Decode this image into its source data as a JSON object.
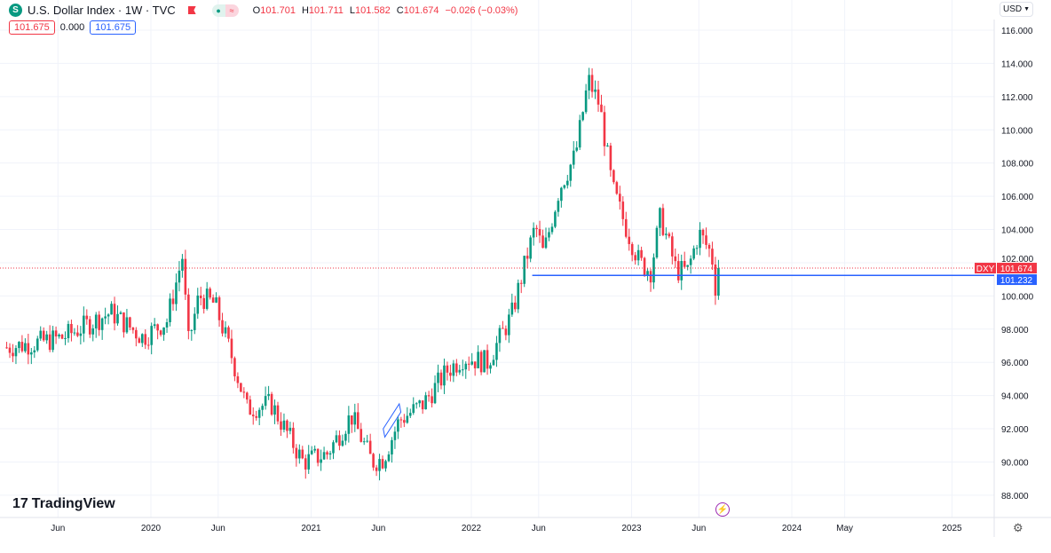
{
  "header": {
    "symbol_icon": "S",
    "title": "U.S. Dollar Index · 1W · TVC",
    "o_label": "O",
    "o": "101.701",
    "h_label": "H",
    "h": "101.711",
    "l_label": "L",
    "l": "101.582",
    "c_label": "C",
    "c": "101.674",
    "change": "−0.026 (−0.03%)"
  },
  "row2": {
    "bid": "101.675",
    "spread": "0.000",
    "ask": "101.675"
  },
  "currency": "USD",
  "logo": "TradingView",
  "colors": {
    "up": "#089981",
    "down": "#f23645",
    "line": "#2962ff"
  },
  "chart_data": {
    "type": "candlestick",
    "symbol": "DXY",
    "last_price": 101.674,
    "last_label": "101.674",
    "hline": 101.232,
    "hline_label": "101.232",
    "ylim": [
      87,
      117
    ],
    "yticks": [
      "116.000",
      "114.000",
      "112.000",
      "110.000",
      "108.000",
      "106.000",
      "104.000",
      "102.000",
      "100.000",
      "98.000",
      "96.000",
      "94.000",
      "92.000",
      "90.000",
      "88.000"
    ],
    "xticks": [
      "Jun",
      "2020",
      "Jun",
      "2021",
      "Jun",
      "2022",
      "Jun",
      "2023",
      "Jun",
      "2024",
      "May",
      "2025"
    ],
    "xtick_years": [
      2019.42,
      2020.0,
      2020.42,
      2021.0,
      2021.42,
      2022.0,
      2022.42,
      2023.0,
      2023.42,
      2024.0,
      2024.33,
      2025.0
    ],
    "path": [
      [
        2019.1,
        96.9
      ],
      [
        2019.3,
        97.2
      ],
      [
        2019.45,
        97.5
      ],
      [
        2019.75,
        99.0
      ],
      [
        2019.95,
        97.5
      ],
      [
        2020.1,
        98.5
      ],
      [
        2020.2,
        102.5
      ],
      [
        2020.23,
        97
      ],
      [
        2020.3,
        100
      ],
      [
        2020.4,
        99.5
      ],
      [
        2020.5,
        96.5
      ],
      [
        2020.6,
        93.2
      ],
      [
        2020.75,
        93.5
      ],
      [
        2020.95,
        90.0
      ],
      [
        2021.1,
        90.5
      ],
      [
        2021.25,
        92.8
      ],
      [
        2021.38,
        90.0
      ],
      [
        2021.45,
        90.2
      ],
      [
        2021.55,
        92.5
      ],
      [
        2021.7,
        93.5
      ],
      [
        2021.85,
        95.5
      ],
      [
        2021.95,
        96.3
      ],
      [
        2022.1,
        96.0
      ],
      [
        2022.25,
        98.8
      ],
      [
        2022.35,
        102.5
      ],
      [
        2022.4,
        104.2
      ],
      [
        2022.45,
        102.5
      ],
      [
        2022.55,
        106.5
      ],
      [
        2022.65,
        108.5
      ],
      [
        2022.73,
        113.0
      ],
      [
        2022.8,
        111.5
      ],
      [
        2022.88,
        106.5
      ],
      [
        2022.97,
        104.0
      ],
      [
        2023.05,
        102.0
      ],
      [
        2023.12,
        101.5
      ],
      [
        2023.18,
        104.8
      ],
      [
        2023.28,
        101.5
      ],
      [
        2023.35,
        101.5
      ],
      [
        2023.42,
        103.8
      ],
      [
        2023.5,
        102.5
      ],
      [
        2023.53,
        100.0
      ],
      [
        2023.56,
        101.674
      ]
    ]
  }
}
